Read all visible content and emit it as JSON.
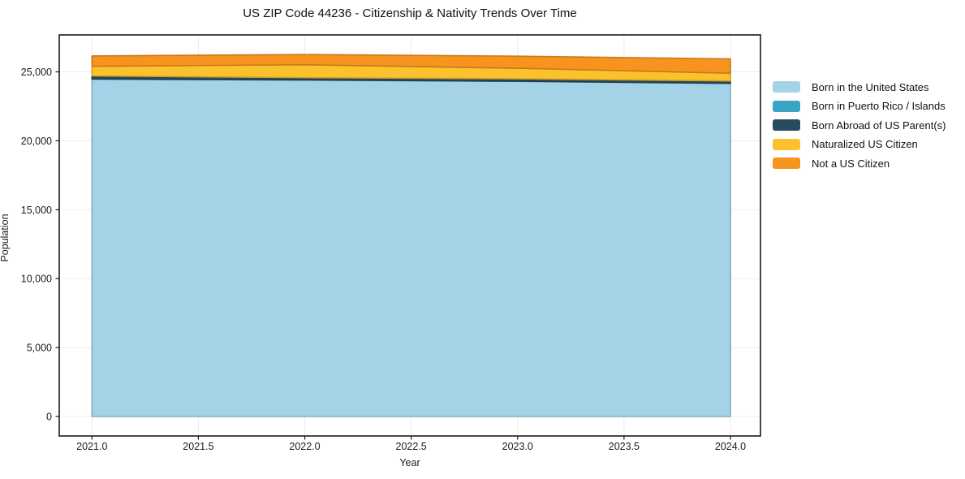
{
  "title": "US ZIP Code 44236 - Citizenship & Nativity Trends Over Time",
  "chart_data": {
    "type": "area",
    "stacked": true,
    "title": "US ZIP Code 44236 - Citizenship & Nativity Trends Over Time",
    "xlabel": "Year",
    "ylabel": "Population",
    "x": [
      2021,
      2022,
      2023,
      2024
    ],
    "series": [
      {
        "name": "Born in the United States",
        "color": "#a4d2e6",
        "values": [
          24470,
          24400,
          24310,
          24160
        ]
      },
      {
        "name": "Born in Puerto Rico / Islands",
        "color": "#3aa5c2",
        "values": [
          20,
          20,
          15,
          15
        ]
      },
      {
        "name": "Born Abroad of US Parent(s)",
        "color": "#2a4a5f",
        "values": [
          215,
          160,
          170,
          165
        ]
      },
      {
        "name": "Naturalized US Citizen",
        "color": "#fcc22d",
        "values": [
          700,
          935,
          765,
          560
        ]
      },
      {
        "name": "Not a US Citizen",
        "color": "#f7941f",
        "values": [
          750,
          740,
          880,
          1040
        ]
      }
    ],
    "totals": [
      26155,
      26255,
      26140,
      25940
    ],
    "xticks": {
      "values": [
        2021.0,
        2021.5,
        2022.0,
        2022.5,
        2023.0,
        2023.5,
        2024.0
      ],
      "labels": [
        "2021.0",
        "2021.5",
        "2022.0",
        "2022.5",
        "2023.0",
        "2023.5",
        "2024.0"
      ]
    },
    "yticks": {
      "values": [
        0,
        5000,
        10000,
        15000,
        20000,
        25000
      ],
      "labels": [
        "0",
        "5,000",
        "10,000",
        "15,000",
        "20,000",
        "25,000"
      ]
    },
    "xlim": [
      2020.85,
      2024.14
    ],
    "ylim": [
      -1413,
      27680
    ],
    "grid": true,
    "legend_position": "right",
    "colors": {
      "grid": "#ececec",
      "axis": "#1a1a1a",
      "tick_label": "#1a1a1a",
      "background": "#ffffff"
    }
  }
}
